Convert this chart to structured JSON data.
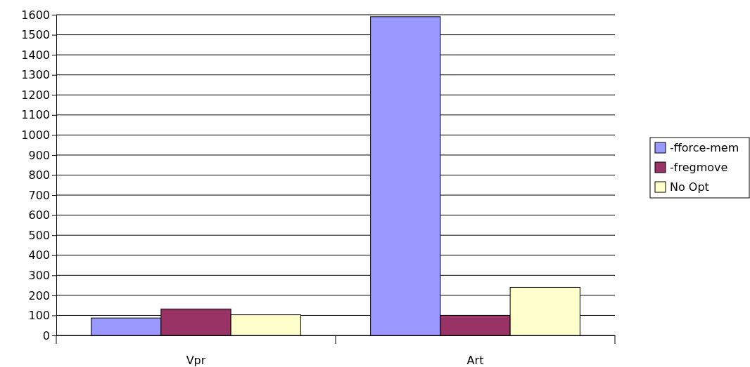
{
  "chart_data": {
    "type": "bar",
    "categories": [
      "Vpr",
      "Art"
    ],
    "series": [
      {
        "name": "-fforce-mem",
        "color": "#9999ff",
        "values": [
          87,
          1590
        ]
      },
      {
        "name": "-fregmove",
        "color": "#993366",
        "values": [
          132,
          100
        ]
      },
      {
        "name": "No Opt",
        "color": "#ffffcc",
        "values": [
          103,
          240
        ]
      }
    ],
    "ylim": [
      0,
      1600
    ],
    "yticks": [
      0,
      100,
      200,
      300,
      400,
      500,
      600,
      700,
      800,
      900,
      1000,
      1100,
      1200,
      1300,
      1400,
      1500,
      1600
    ],
    "grid": "y",
    "legend": "right"
  }
}
